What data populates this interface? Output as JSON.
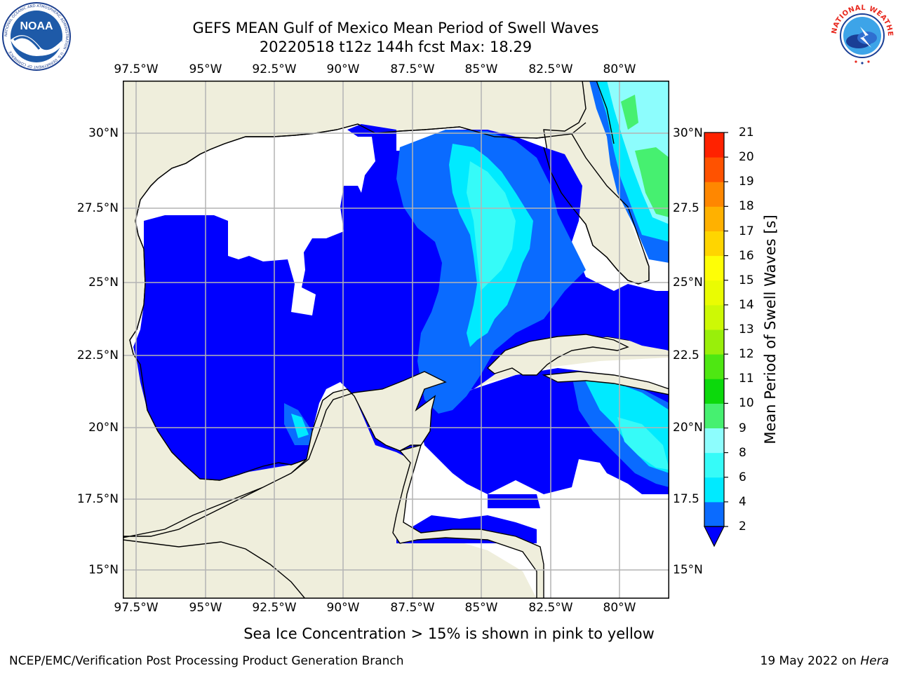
{
  "title": {
    "line1": "GEFS MEAN Gulf of Mexico Mean Period of Swell Waves",
    "line2": "20220518 t12z 144h fcst   Max: 18.29"
  },
  "map": {
    "lon_ticks": [
      "97.5°W",
      "95°W",
      "92.5°W",
      "90°W",
      "87.5°W",
      "85°W",
      "82.5°W",
      "80°W"
    ],
    "lat_ticks_left": [
      "30°N",
      "27.5°N",
      "25°N",
      "22.5°N",
      "20°N",
      "17.5°N",
      "15°N"
    ],
    "lat_ticks_right": [
      "30°N",
      "27.5",
      "25°N",
      "22.5",
      "20°N",
      "17.5",
      "15°N"
    ],
    "land_color": "#efeedc",
    "ocean_nodata_color": "#ffffff",
    "grid_color": "#b4b4b4"
  },
  "colorbar": {
    "title": "Mean Period of Swell Waves [s]",
    "levels": [
      "2",
      "4",
      "6",
      "8",
      "9",
      "10",
      "11",
      "12",
      "13",
      "14",
      "15",
      "16",
      "17",
      "18",
      "19",
      "20",
      "21"
    ],
    "colors": [
      "#0000ff",
      "#0a6bff",
      "#00eaff",
      "#36fbf8",
      "#8dfdfd",
      "#46f070",
      "#0cd90c",
      "#4ee712",
      "#99ef0a",
      "#cdf905",
      "#eafc02",
      "#fefe06",
      "#ffd500",
      "#ffb100",
      "#ff8700",
      "#ff5200",
      "#ff2200",
      "#ff0000"
    ],
    "extend": "min"
  },
  "note": "Sea Ice Concentration > 15% is shown in pink to yellow",
  "footer": {
    "left": "NCEP/EMC/Verification Post Processing Product Generation Branch",
    "date": "19 May 2022 on ",
    "host": "Hera"
  },
  "logos": {
    "left": "NOAA",
    "left_ring": "NATIONAL OCEANIC AND ATMOSPHERIC ADMINISTRATION · U.S. DEPARTMENT OF COMMERCE",
    "right_ring": "NATIONAL WEATHER SERVICE"
  }
}
